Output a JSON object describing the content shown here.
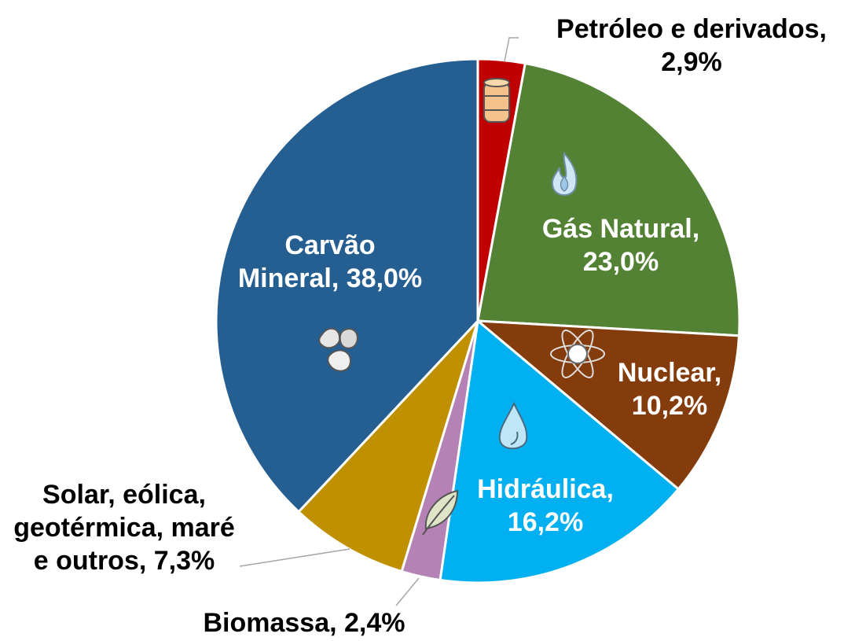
{
  "chart_data": {
    "type": "pie",
    "start_angle_deg": 0,
    "direction": "clockwise",
    "slices": [
      {
        "name": "Petróleo e derivados",
        "value": 2.9,
        "display": "2,9%",
        "color": "#c00000",
        "icon": "oil-barrel-icon",
        "label_lines": [
          "Petróleo e derivados,",
          "2,9%"
        ],
        "label_position": "outside"
      },
      {
        "name": "Gás Natural",
        "value": 23.0,
        "display": "23,0%",
        "color": "#548235",
        "icon": "gas-flame-icon",
        "label_lines": [
          "Gás Natural,",
          "23,0%"
        ],
        "label_position": "inside"
      },
      {
        "name": "Nuclear",
        "value": 10.2,
        "display": "10,2%",
        "color": "#843c0c",
        "icon": "atom-icon",
        "label_lines": [
          "Nuclear,",
          "10,2%"
        ],
        "label_position": "inside"
      },
      {
        "name": "Hidráulica",
        "value": 16.2,
        "display": "16,2%",
        "color": "#00b0f0",
        "icon": "water-drop-icon",
        "label_lines": [
          "Hidráulica,",
          "16,2%"
        ],
        "label_position": "inside"
      },
      {
        "name": "Biomassa",
        "value": 2.4,
        "display": "2,4%",
        "color": "#b482b4",
        "icon": "leaf-icon",
        "label_lines": [
          "Biomassa, 2,4%"
        ],
        "label_position": "outside"
      },
      {
        "name": "Solar, eólica, geotérmica, maré e outros",
        "value": 7.3,
        "display": "7,3%",
        "color": "#bf9000",
        "icon": "",
        "label_lines": [
          "Solar, eólica,",
          "geotérmica, maré",
          "e outros, 7,3%"
        ],
        "label_position": "outside"
      },
      {
        "name": "Carvão Mineral",
        "value": 38.0,
        "display": "38,0%",
        "color": "#255e91",
        "icon": "coal-icon",
        "label_lines": [
          "Carvão",
          "Mineral, 38,0%"
        ],
        "label_position": "inside"
      }
    ]
  }
}
